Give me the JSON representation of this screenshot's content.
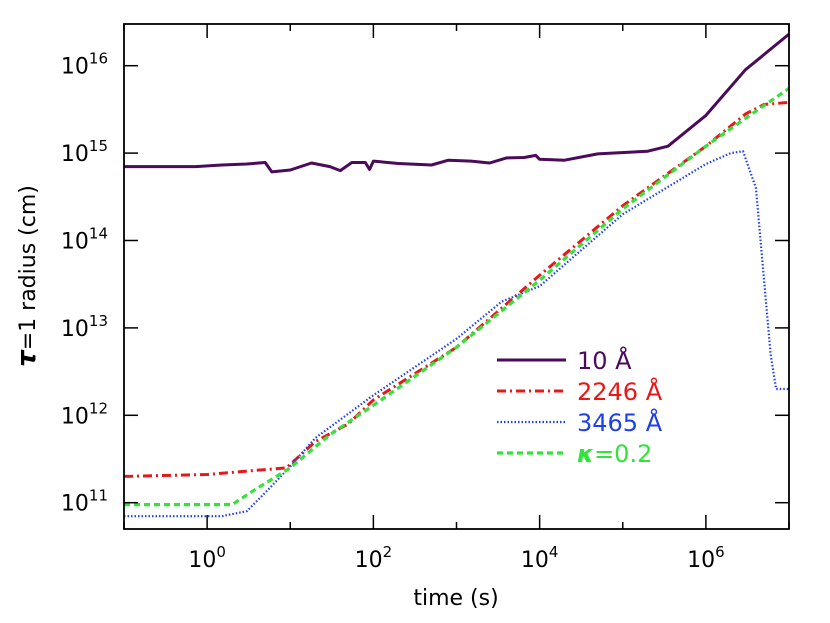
{
  "chart_data": {
    "type": "line",
    "xlabel": "time (s)",
    "ylabel_symbol": "τ",
    "ylabel_rest": "=1 radius (cm)",
    "xscale": "log",
    "yscale": "log",
    "xlim": [
      0.1,
      10000000
    ],
    "ylim": [
      50000000000,
      30000000000000000
    ],
    "grid": false,
    "legend_placement": "lower-right, inside plot",
    "x_ticks": [
      {
        "base": "10",
        "exp": "0",
        "value": 1
      },
      {
        "base": "10",
        "exp": "2",
        "value": 100
      },
      {
        "base": "10",
        "exp": "4",
        "value": 10000
      },
      {
        "base": "10",
        "exp": "6",
        "value": 1000000
      }
    ],
    "y_ticks": [
      {
        "base": "10",
        "exp": "11",
        "value": 100000000000
      },
      {
        "base": "10",
        "exp": "12",
        "value": 1000000000000
      },
      {
        "base": "10",
        "exp": "13",
        "value": 10000000000000
      },
      {
        "base": "10",
        "exp": "14",
        "value": 100000000000000
      },
      {
        "base": "10",
        "exp": "15",
        "value": 1000000000000000
      },
      {
        "base": "10",
        "exp": "16",
        "value": 10000000000000000
      }
    ],
    "series": [
      {
        "name": "10 Å",
        "color": "#4b0a5a",
        "style": "solid",
        "points": [
          [
            0.1,
            700000000000000.0
          ],
          [
            0.72,
            700000000000000.0
          ],
          [
            1.5,
            730000000000000.0
          ],
          [
            3.0,
            750000000000000.0
          ],
          [
            5.0,
            780000000000000.0
          ],
          [
            6.0,
            610000000000000.0
          ],
          [
            10,
            640000000000000.0
          ],
          [
            18,
            770000000000000.0
          ],
          [
            30,
            700000000000000.0
          ],
          [
            40,
            630000000000000.0
          ],
          [
            55,
            780000000000000.0
          ],
          [
            80,
            780000000000000.0
          ],
          [
            90,
            650000000000000.0
          ],
          [
            100,
            810000000000000.0
          ],
          [
            200,
            760000000000000.0
          ],
          [
            500,
            730000000000000.0
          ],
          [
            800,
            830000000000000.0
          ],
          [
            1500,
            810000000000000.0
          ],
          [
            2500,
            770000000000000.0
          ],
          [
            4000,
            880000000000000.0
          ],
          [
            6500,
            890000000000000.0
          ],
          [
            9000,
            940000000000000.0
          ],
          [
            10000,
            850000000000000.0
          ],
          [
            20000,
            830000000000000.0
          ],
          [
            50000,
            980000000000000.0
          ],
          [
            200000,
            1050000000000000.0
          ],
          [
            350000,
            1200000000000000.0
          ],
          [
            1000000,
            2700000000000000.0
          ],
          [
            3000000,
            9000000000000000.0
          ],
          [
            10000000,
            2.3e+16
          ]
        ]
      },
      {
        "name": "2246 Å",
        "color": "#e8181a",
        "style": "dashdot",
        "points": [
          [
            0.1,
            200000000000.0
          ],
          [
            1.0,
            210000000000.0
          ],
          [
            3.0,
            230000000000.0
          ],
          [
            9.0,
            250000000000.0
          ],
          [
            20,
            500000000000.0
          ],
          [
            50,
            800000000000.0
          ],
          [
            100,
            1500000000000.0
          ],
          [
            1000,
            6000000000000.0
          ],
          [
            10000,
            40000000000000.0
          ],
          [
            100000,
            250000000000000.0
          ],
          [
            1000000,
            1200000000000000.0
          ],
          [
            3000000,
            2800000000000000.0
          ],
          [
            5000000,
            3600000000000000.0
          ],
          [
            10000000,
            3800000000000000.0
          ]
        ]
      },
      {
        "name": "3465 Å",
        "color": "#1f3fe8",
        "style": "dotted",
        "points": [
          [
            0.1,
            70000000000.0
          ],
          [
            1.5,
            70000000000.0
          ],
          [
            3.0,
            80000000000.0
          ],
          [
            5.0,
            130000000000.0
          ],
          [
            10,
            260000000000.0
          ],
          [
            20,
            550000000000.0
          ],
          [
            100,
            1700000000000.0
          ],
          [
            1000,
            7500000000000.0
          ],
          [
            3500,
            20000000000000.0
          ],
          [
            10000,
            30000000000000.0
          ],
          [
            100000,
            200000000000000.0
          ],
          [
            1000000,
            750000000000000.0
          ],
          [
            2000000,
            1000000000000000.0
          ],
          [
            2800000,
            1050000000000000.0
          ],
          [
            4000000,
            400000000000000.0
          ],
          [
            6000000,
            5000000000000.0
          ],
          [
            7000000,
            2000000000000.0
          ],
          [
            10000000,
            2000000000000.0
          ]
        ]
      },
      {
        "name": "κ=0.2",
        "color": "#34e23c",
        "style": "dashed",
        "points": [
          [
            0.1,
            95000000000.0
          ],
          [
            2.0,
            95000000000.0
          ],
          [
            3.5,
            135000000000.0
          ],
          [
            10,
            250000000000.0
          ],
          [
            30,
            600000000000.0
          ],
          [
            100,
            1300000000000.0
          ],
          [
            1000,
            6000000000000.0
          ],
          [
            10000,
            35000000000000.0
          ],
          [
            100000,
            230000000000000.0
          ],
          [
            1000000,
            1200000000000000.0
          ],
          [
            3000000,
            2500000000000000.0
          ],
          [
            10000000,
            5500000000000000.0
          ]
        ]
      }
    ]
  }
}
